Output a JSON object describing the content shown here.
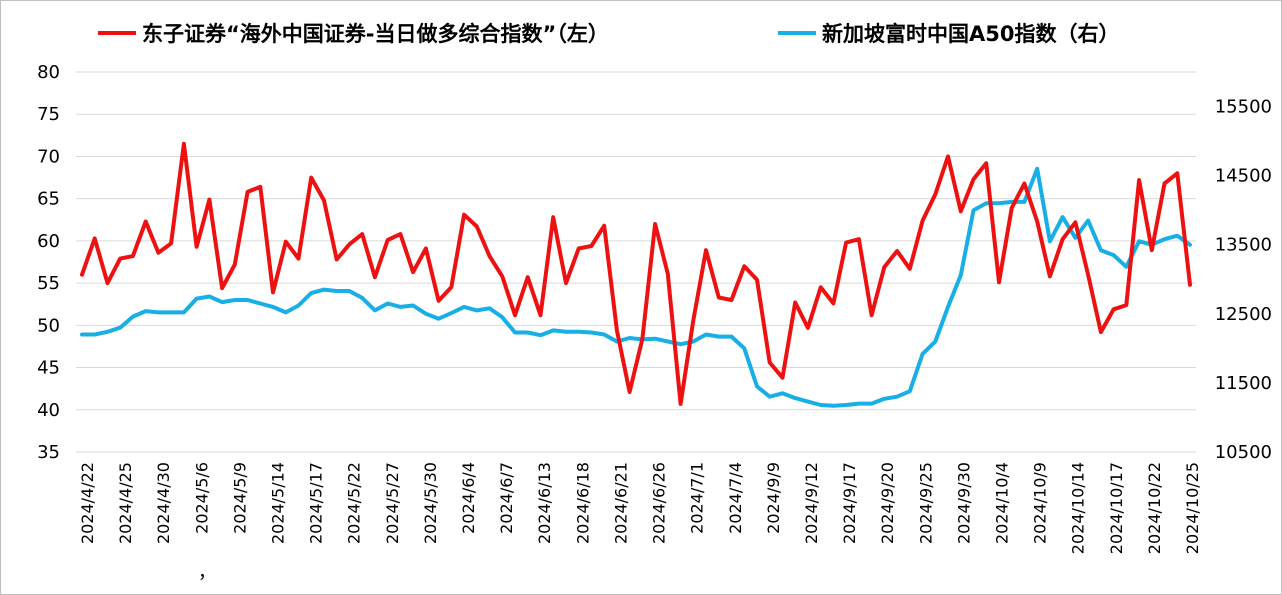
{
  "chart_data": {
    "type": "line",
    "legend_position": "top",
    "grid": true,
    "y_left": {
      "lim": [
        35,
        80
      ],
      "ticks": [
        35,
        40,
        45,
        50,
        55,
        60,
        65,
        70,
        75,
        80
      ]
    },
    "y_right": {
      "lim": [
        10500,
        16000
      ],
      "ticks": [
        10500,
        11500,
        12500,
        13500,
        14500,
        15500
      ]
    },
    "x_tick_labels": [
      "2024/4/22",
      "2024/4/25",
      "2024/4/30",
      "2024/5/6",
      "2024/5/9",
      "2024/5/14",
      "2024/5/17",
      "2024/5/22",
      "2024/5/27",
      "2024/5/30",
      "2024/6/4",
      "2024/6/7",
      "2024/6/13",
      "2024/6/18",
      "2024/6/21",
      "2024/6/26",
      "2024/7/1",
      "2024/7/4",
      "2024/9/9",
      "2024/9/12",
      "2024/9/17",
      "2024/9/20",
      "2024/9/25",
      "2024/9/30",
      "2024/10/4",
      "2024/10/9",
      "2024/10/14",
      "2024/10/17",
      "2024/10/22",
      "2024/10/25"
    ],
    "stray_mark": "，",
    "series": [
      {
        "name": "东子证券“海外中国证券-当日做多综合指数”（左）",
        "axis": "left",
        "color": "#ee1111",
        "values": [
          56.0,
          60.3,
          55.0,
          57.9,
          58.2,
          62.3,
          58.6,
          59.7,
          71.5,
          59.3,
          64.9,
          54.4,
          57.2,
          65.8,
          66.4,
          53.9,
          59.9,
          57.9,
          67.5,
          64.8,
          57.8,
          59.6,
          60.8,
          55.7,
          60.1,
          60.8,
          56.3,
          59.1,
          52.9,
          54.5,
          63.1,
          61.7,
          58.2,
          55.8,
          51.2,
          55.7,
          51.2,
          62.8,
          55.0,
          59.1,
          59.4,
          61.8,
          49.4,
          42.1,
          48.4,
          62.0,
          56.1,
          40.7,
          50.6,
          58.9,
          53.3,
          53.0,
          57.0,
          55.4,
          45.6,
          43.8,
          52.7,
          49.7,
          54.5,
          52.6,
          59.8,
          60.2,
          51.2,
          56.9,
          58.8,
          56.7,
          62.4,
          65.5,
          70.0,
          63.5,
          67.3,
          69.2,
          55.1,
          63.9,
          66.8,
          62.3,
          55.8,
          60.2,
          62.2,
          56.0,
          49.2,
          51.9,
          52.4,
          67.2,
          58.9,
          66.8,
          68.0,
          54.8
        ]
      },
      {
        "name": "新加坡富时中国A50指数（右）",
        "axis": "right",
        "color": "#18aee6",
        "values": [
          12200,
          12200,
          12240,
          12300,
          12460,
          12540,
          12520,
          12520,
          12520,
          12720,
          12750,
          12670,
          12700,
          12700,
          12650,
          12600,
          12520,
          12620,
          12800,
          12850,
          12830,
          12830,
          12730,
          12550,
          12650,
          12600,
          12620,
          12500,
          12430,
          12510,
          12600,
          12550,
          12580,
          12450,
          12230,
          12230,
          12190,
          12260,
          12240,
          12240,
          12230,
          12200,
          12100,
          12150,
          12130,
          12140,
          12100,
          12060,
          12100,
          12200,
          12170,
          12170,
          12000,
          11450,
          11300,
          11350,
          11280,
          11230,
          11180,
          11170,
          11180,
          11200,
          11200,
          11270,
          11300,
          11380,
          11920,
          12100,
          12600,
          13060,
          14000,
          14100,
          14100,
          14120,
          14120,
          14600,
          13550,
          13900,
          13600,
          13850,
          13420,
          13350,
          13180,
          13550,
          13500,
          13580,
          13630,
          13500
        ]
      }
    ]
  }
}
